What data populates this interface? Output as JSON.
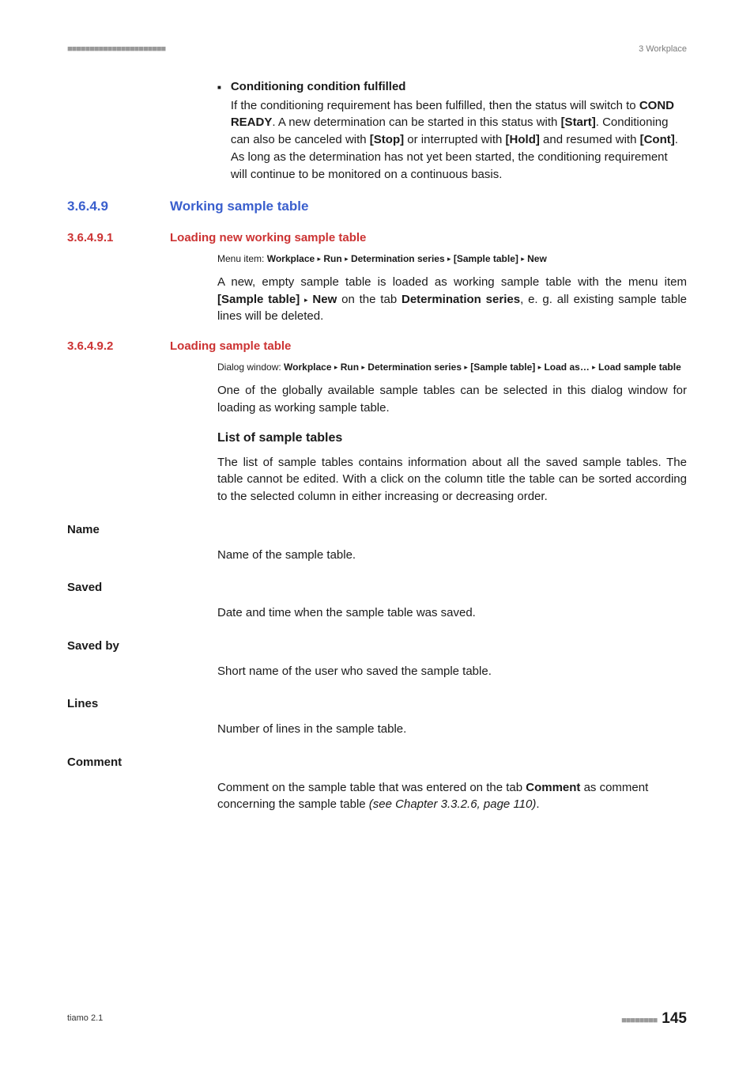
{
  "header": {
    "dots": "■■■■■■■■■■■■■■■■■■■■■■",
    "right": "3 Workplace"
  },
  "bullet": {
    "title": "Conditioning condition fulfilled",
    "body_1": "If the conditioning requirement has been fulfilled, then the status will switch to ",
    "body_cond": "COND READY",
    "body_2": ". A new determination can be started in this status with ",
    "body_start": "[Start]",
    "body_3": ". Conditioning can also be canceled with ",
    "body_stop": "[Stop]",
    "body_4": " or interrupted with ",
    "body_hold": "[Hold]",
    "body_5": " and resumed with ",
    "body_cont": "[Cont]",
    "body_6": ". As long as the determination has not yet been started, the conditioning requirement will continue to be monitored on a continuous basis."
  },
  "sec_3649": {
    "num": "3.6.4.9",
    "title": "Working sample table"
  },
  "sec_36491": {
    "num": "3.6.4.9.1",
    "title": "Loading new working sample table",
    "menu_label": "Menu item: ",
    "menu": {
      "p1": "Workplace",
      "p2": "Run",
      "p3": "Determination series",
      "p4": "[Sample table]",
      "p5": "New"
    },
    "para_1a": "A new, empty sample table is loaded as working sample table with the menu item ",
    "para_1b": "[Sample table]",
    "para_1c": "New",
    "para_1d": " on the tab ",
    "para_1e": "Determination series",
    "para_1f": ", e. g. all existing sample table lines will be deleted."
  },
  "sec_36492": {
    "num": "3.6.4.9.2",
    "title": "Loading sample table",
    "menu_label": "Dialog window: ",
    "menu": {
      "p1": "Workplace",
      "p2": "Run",
      "p3": "Determination series",
      "p4": "[Sample table]",
      "p5": "Load as…",
      "p6": "Load sample table"
    },
    "para_1": "One of the globally available sample tables can be selected in this dialog window for loading as working sample table.",
    "heading": "List of sample tables",
    "para_2": "The list of sample tables contains information about all the saved sample tables. The table cannot be edited. With a click on the column title the table can be sorted according to the selected column in either increasing or decreasing order."
  },
  "defs": {
    "name_t": "Name",
    "name_b": "Name of the sample table.",
    "saved_t": "Saved",
    "saved_b": "Date and time when the sample table was saved.",
    "savedby_t": "Saved by",
    "savedby_b": "Short name of the user who saved the sample table.",
    "lines_t": "Lines",
    "lines_b": "Number of lines in the sample table.",
    "comment_t": "Comment",
    "comment_b1": "Comment on the sample table that was entered on the tab ",
    "comment_b2": "Comment",
    "comment_b3": " as comment concerning the sample table ",
    "comment_b4": "(see Chapter 3.3.2.6, page 110)",
    "comment_b5": "."
  },
  "footer": {
    "left": "tiamo 2.1",
    "dots": "■■■■■■■■",
    "page": "145"
  },
  "tri": "▸"
}
